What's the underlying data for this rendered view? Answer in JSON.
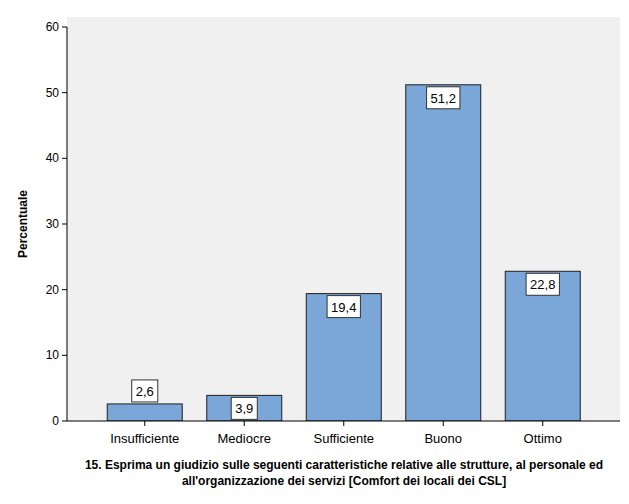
{
  "chart_data": {
    "type": "bar",
    "x_label": "15. Esprima un giudizio sulle seguenti caratteristiche relative alle strutture, al personale ed all'organizzazione dei servizi [Comfort dei locali dei CSL]",
    "y_label": "Percentuale",
    "categories": [
      "Insufficiente",
      "Mediocre",
      "Sufficiente",
      "Buono",
      "Ottimo"
    ],
    "values": [
      2.6,
      3.9,
      19.4,
      51.2,
      22.8
    ],
    "value_labels": [
      "2,6",
      "3,9",
      "19,4",
      "51,2",
      "22,8"
    ],
    "data_labels": true,
    "color": "#7aa7d8",
    "ylim": [
      0,
      60
    ],
    "yticks": [
      0,
      10,
      20,
      30,
      40,
      50,
      60
    ],
    "grid": false
  }
}
